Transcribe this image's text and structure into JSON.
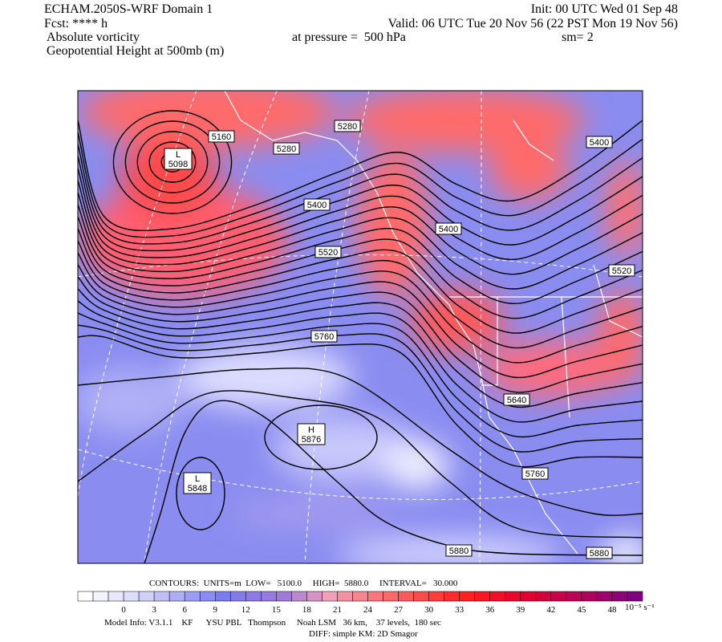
{
  "header": {
    "model": "ECHAM.2050S-WRF Domain 1",
    "init": "Init: 00 UTC Wed 01 Sep 48",
    "fcst": "Fcst: **** h",
    "valid": "Valid: 06 UTC Tue 20 Nov 56 (22 PST Mon 19 Nov 56)",
    "field1": "Absolute vorticity",
    "pressure": "at pressure =  500 hPa",
    "sm": "sm= 2",
    "field2": "Geopotential Height at 500mb (m)"
  },
  "contour_labels": [
    5160,
    5280,
    5280,
    5400,
    5400,
    5400,
    5520,
    5520,
    5760,
    5640,
    5760,
    5880,
    5880
  ],
  "centers": [
    {
      "symbol": "L",
      "value": 5098
    },
    {
      "symbol": "H",
      "value": 5876
    },
    {
      "symbol": "L",
      "value": 5848
    }
  ],
  "footer": {
    "contours": "CONTOURS:  UNITS=m  LOW=   5100.0     HIGH=  5880.0     INTERVAL=   30.000",
    "colorbar_ticks": [
      0,
      3,
      6,
      9,
      12,
      15,
      18,
      21,
      24,
      27,
      30,
      33,
      36,
      39,
      42,
      45,
      48
    ],
    "colorbar_unit": "10⁻⁵ s⁻¹",
    "model_info": "Model Info: V3.1.1    KF      YSU PBL   Thompson     Noah LSM   36 km,    37 levels,  180 sec",
    "diff": "DIFF: simple KM: 2D Smagor"
  }
}
